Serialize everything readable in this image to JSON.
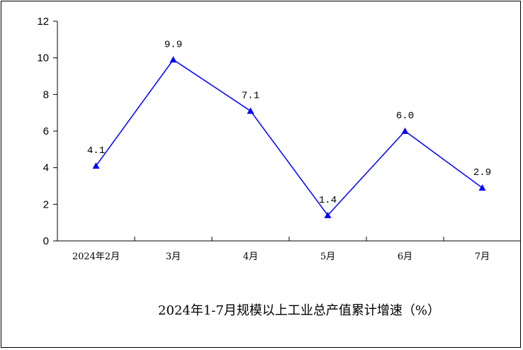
{
  "chart_data": {
    "type": "line",
    "title": "2024年1-7月规模以上工业总产值累计增速（%）",
    "categories": [
      "2024年2月",
      "3月",
      "4月",
      "5月",
      "6月",
      "7月"
    ],
    "series": [
      {
        "values": [
          4.1,
          9.9,
          7.1,
          1.4,
          6.0,
          2.9
        ],
        "labels": [
          "4.1",
          "9.9",
          "7.1",
          "1.4",
          "6.0",
          "2.9"
        ],
        "color": "#0000ff",
        "marker": "triangle"
      }
    ],
    "yticks": [
      "0",
      "2",
      "4",
      "6",
      "8",
      "10",
      "12"
    ],
    "ylim": [
      0,
      12
    ],
    "grid": false,
    "legend": "none"
  }
}
